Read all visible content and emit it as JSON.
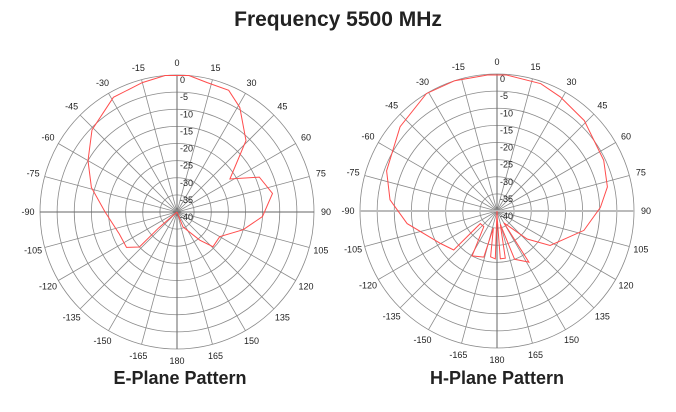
{
  "title": "Frequency 5500 MHz",
  "chart_data": [
    {
      "type": "polar-line",
      "title": "E-Plane Pattern",
      "angle_ticks": [
        0,
        15,
        30,
        45,
        60,
        75,
        90,
        105,
        120,
        135,
        150,
        165,
        180,
        -165,
        -150,
        -135,
        -120,
        -105,
        -90,
        -75,
        -60,
        -45,
        -30,
        -15
      ],
      "radial_ticks": [
        0,
        -5,
        -10,
        -15,
        -20,
        -25,
        -30,
        -35,
        -40
      ],
      "rlim": [
        -40,
        0
      ],
      "grid": true,
      "color": "#ff4d4d",
      "points": [
        [
          -180,
          -40
        ],
        [
          -131,
          -33
        ],
        [
          -133,
          -25
        ],
        [
          -125,
          -22
        ],
        [
          -111,
          -22
        ],
        [
          -90,
          -19
        ],
        [
          -74,
          -14
        ],
        [
          -60,
          -10
        ],
        [
          -46,
          -5.5
        ],
        [
          -29,
          -1.7
        ],
        [
          -15,
          -0.9
        ],
        [
          -5,
          0
        ],
        [
          5,
          0
        ],
        [
          13,
          -1.2
        ],
        [
          23,
          -1.4
        ],
        [
          31,
          -4.4
        ],
        [
          44,
          -11
        ],
        [
          58,
          -21.8
        ],
        [
          67,
          -13.9
        ],
        [
          79,
          -11.6
        ],
        [
          93,
          -15
        ],
        [
          105,
          -20
        ],
        [
          120,
          -25.6
        ],
        [
          134,
          -25.4
        ],
        [
          141,
          -29.4
        ],
        [
          158,
          -35.3
        ],
        [
          180,
          -40
        ]
      ]
    },
    {
      "type": "polar-line",
      "title": "H-Plane Pattern",
      "angle_ticks": [
        0,
        15,
        30,
        45,
        60,
        75,
        90,
        105,
        120,
        135,
        150,
        165,
        180,
        -165,
        -150,
        -135,
        -120,
        -105,
        -90,
        -75,
        -60,
        -45,
        -30,
        -15
      ],
      "radial_ticks": [
        0,
        -5,
        -10,
        -15,
        -20,
        -25,
        -30,
        -35,
        -40
      ],
      "rlim": [
        -40,
        0
      ],
      "grid": true,
      "color": "#ff4d4d",
      "points": [
        [
          -180,
          -40
        ],
        [
          -178,
          -26
        ],
        [
          -172,
          -26.5
        ],
        [
          -168,
          -35
        ],
        [
          -164,
          -26
        ],
        [
          -156,
          -25.5
        ],
        [
          -151,
          -25
        ],
        [
          -140,
          -34
        ],
        [
          -127,
          -33.9
        ],
        [
          -132,
          -23
        ],
        [
          -120,
          -21
        ],
        [
          -98,
          -13.5
        ],
        [
          -84,
          -8.6
        ],
        [
          -70,
          -5.7
        ],
        [
          -49,
          -2.5
        ],
        [
          -31,
          0
        ],
        [
          -18,
          0
        ],
        [
          -4,
          -0.2
        ],
        [
          4,
          -0.2
        ],
        [
          19,
          -0.7
        ],
        [
          29,
          -1.9
        ],
        [
          44,
          -3.3
        ],
        [
          64.6,
          -5.5
        ],
        [
          77.7,
          -7
        ],
        [
          88,
          -9.8
        ],
        [
          102.6,
          -14
        ],
        [
          123,
          -21.5
        ],
        [
          133,
          -28
        ],
        [
          150,
          -36
        ],
        [
          148,
          -22.4
        ],
        [
          160,
          -25
        ],
        [
          166,
          -36
        ],
        [
          170,
          -26
        ],
        [
          176,
          -26
        ],
        [
          178,
          -38
        ],
        [
          180,
          -40
        ]
      ]
    }
  ]
}
